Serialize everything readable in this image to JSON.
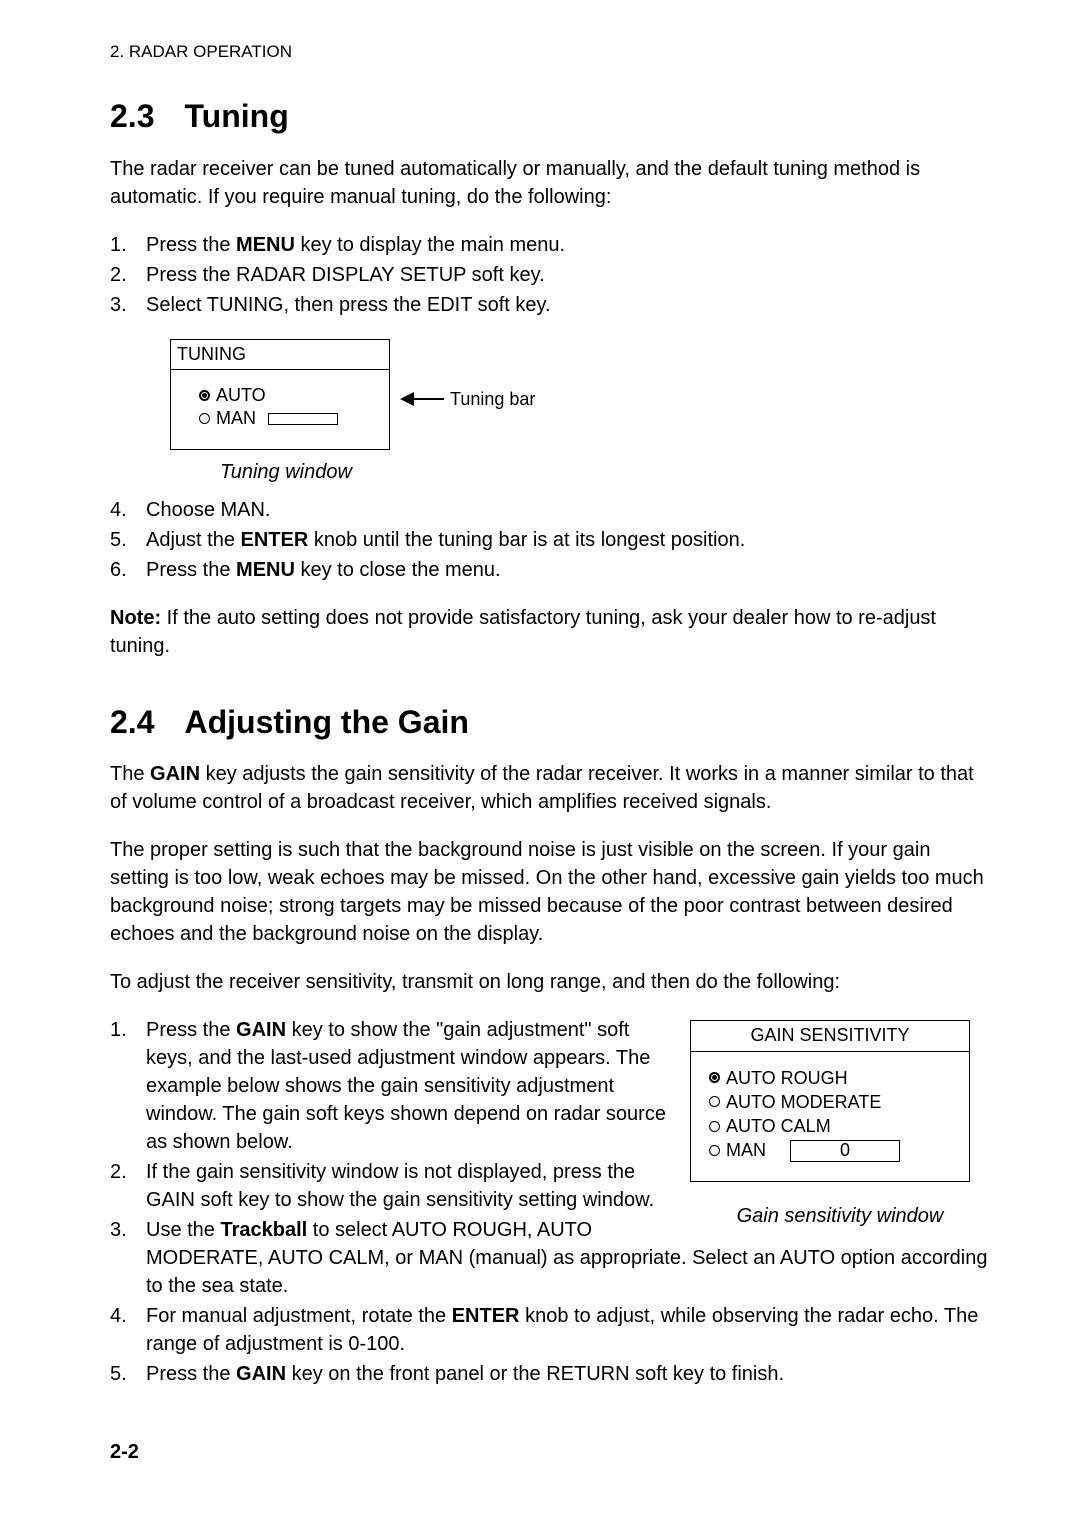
{
  "header": "2. RADAR OPERATION",
  "section23": {
    "num": "2.3",
    "title": "Tuning",
    "intro": "The radar receiver can be tuned automatically or manually, and the default tuning method is automatic. If you require manual tuning, do the following:",
    "steps_a": [
      {
        "pre": "Press the ",
        "bold": "MENU",
        "post": " key to display the main menu."
      },
      {
        "pre": "Press the RADAR DISPLAY SETUP soft key.",
        "bold": "",
        "post": ""
      },
      {
        "pre": "Select TUNING, then press the EDIT soft key.",
        "bold": "",
        "post": ""
      }
    ],
    "tuning_window": {
      "title": "TUNING",
      "opt_auto": "AUTO",
      "opt_man": "MAN",
      "annotation": "Tuning bar",
      "caption": "Tuning window"
    },
    "steps_b": [
      {
        "pre": "Choose MAN.",
        "bold": "",
        "post": ""
      },
      {
        "pre": "Adjust the ",
        "bold": "ENTER",
        "post": " knob until the tuning bar is at its longest position."
      },
      {
        "pre": "Press the ",
        "bold": "MENU",
        "post": " key to close the menu."
      }
    ],
    "note_label": "Note:",
    "note_text": " If the auto setting does not provide satisfactory tuning, ask your dealer how to re-adjust tuning."
  },
  "section24": {
    "num": "2.4",
    "title": "Adjusting the Gain",
    "para1_pre": "The ",
    "para1_bold": "GAIN",
    "para1_post": " key adjusts the gain sensitivity of the radar receiver. It works in a manner similar to that of volume control of a broadcast receiver, which amplifies received signals.",
    "para2": "The proper setting is such that the background noise is just visible on the screen. If your gain setting is too low, weak echoes may be missed. On the other hand, excessive gain yields too much background noise; strong targets may be missed because of the poor contrast between desired echoes and the background noise on the display.",
    "para3": "To adjust the receiver sensitivity, transmit on long range, and then do the following:",
    "gain_window": {
      "title": "GAIN SENSITIVITY",
      "opt1": "AUTO ROUGH",
      "opt2": "AUTO MODERATE",
      "opt3": "AUTO CALM",
      "opt4": "MAN",
      "man_value": "0",
      "caption": "Gain sensitivity window"
    },
    "steps": [
      {
        "parts": [
          {
            "t": "Press the "
          },
          {
            "b": "GAIN"
          },
          {
            "t": " key to show the \"gain adjustment\" soft keys, and the last-used adjustment window appears. The example below shows the gain sensitivity adjustment window. The gain soft keys shown depend on radar source as shown below."
          }
        ]
      },
      {
        "parts": [
          {
            "t": "If the gain sensitivity window is not displayed, press the GAIN soft key to show the gain sensitivity setting window."
          }
        ]
      },
      {
        "parts": [
          {
            "t": "Use the "
          },
          {
            "b": "Trackball"
          },
          {
            "t": " to select AUTO ROUGH, AUTO MODERATE, AUTO CALM, or MAN (manual) as appropriate. Select an AUTO option according to the sea state."
          }
        ]
      },
      {
        "parts": [
          {
            "t": "For manual adjustment, rotate the "
          },
          {
            "b": "ENTER"
          },
          {
            "t": " knob to adjust, while observing the radar echo. The range of adjustment is 0-100."
          }
        ]
      },
      {
        "parts": [
          {
            "t": "Press the "
          },
          {
            "b": "GAIN"
          },
          {
            "t": " key on the front panel or the RETURN soft key to finish."
          }
        ]
      }
    ]
  },
  "page_num": "2-2"
}
